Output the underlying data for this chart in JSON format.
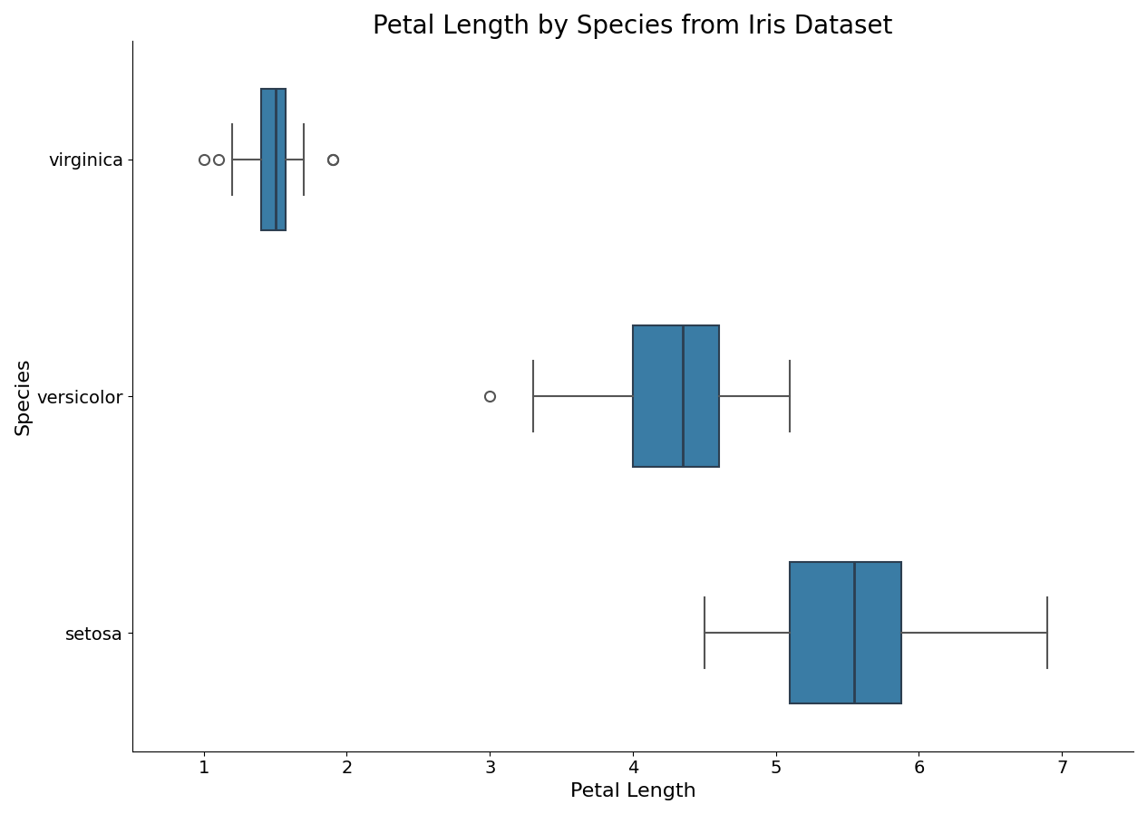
{
  "title": "Petal Length by Species from Iris Dataset",
  "xlabel": "Petal Length",
  "ylabel": "Species",
  "species_order": [
    "virginica",
    "versicolor",
    "setosa"
  ],
  "ytick_labels": [
    "setosa",
    "versicolor",
    "virginica"
  ],
  "petal_length_setosa": [
    1.4,
    1.4,
    1.3,
    1.5,
    1.4,
    1.7,
    1.4,
    1.5,
    1.4,
    1.5,
    1.5,
    1.6,
    1.4,
    1.1,
    1.2,
    1.5,
    1.3,
    1.4,
    1.7,
    1.5,
    1.7,
    1.5,
    1.0,
    1.7,
    1.9,
    1.6,
    1.6,
    1.5,
    1.4,
    1.6,
    1.6,
    1.5,
    1.5,
    1.4,
    1.5,
    1.2,
    1.3,
    1.4,
    1.3,
    1.5,
    1.3,
    1.3,
    1.3,
    1.6,
    1.9,
    1.4,
    1.6,
    1.4,
    1.5,
    1.4
  ],
  "petal_length_versicolor": [
    4.7,
    4.5,
    4.9,
    4.0,
    4.6,
    4.5,
    4.7,
    3.3,
    4.6,
    3.9,
    3.5,
    4.2,
    4.0,
    4.7,
    3.6,
    4.4,
    4.5,
    4.1,
    4.5,
    3.9,
    4.8,
    4.0,
    4.9,
    4.7,
    4.3,
    4.4,
    4.8,
    5.0,
    4.5,
    3.5,
    3.8,
    3.7,
    3.9,
    5.1,
    4.5,
    4.5,
    4.7,
    4.4,
    4.1,
    4.0,
    4.4,
    4.6,
    4.0,
    3.3,
    4.2,
    4.2,
    4.2,
    4.3,
    3.0,
    4.1
  ],
  "petal_length_virginica": [
    6.0,
    5.1,
    5.9,
    5.6,
    5.8,
    6.6,
    4.5,
    6.3,
    5.8,
    6.1,
    5.1,
    5.3,
    5.5,
    5.0,
    5.1,
    5.3,
    5.5,
    6.7,
    6.9,
    5.0,
    5.7,
    4.9,
    6.7,
    4.9,
    5.7,
    6.0,
    4.8,
    4.9,
    5.6,
    5.8,
    6.1,
    6.4,
    5.6,
    5.1,
    5.6,
    6.1,
    5.6,
    5.5,
    4.8,
    5.4,
    5.6,
    5.1,
    5.9,
    5.7,
    5.2,
    5.0,
    5.2,
    5.4,
    5.1,
    4.6
  ],
  "box_color": "#3a7ca5",
  "box_edge_color": "#2c3e50",
  "whisker_color": "#555555",
  "flier_color": "#555555",
  "median_color": "#2c3e50",
  "title_fontsize": 20,
  "label_fontsize": 16,
  "tick_fontsize": 14,
  "xlim": [
    0.5,
    7.5
  ],
  "xticks": [
    1,
    2,
    3,
    4,
    5,
    6,
    7
  ],
  "figsize": [
    12.65,
    8.98
  ],
  "dpi": 100,
  "box_width": 0.6
}
